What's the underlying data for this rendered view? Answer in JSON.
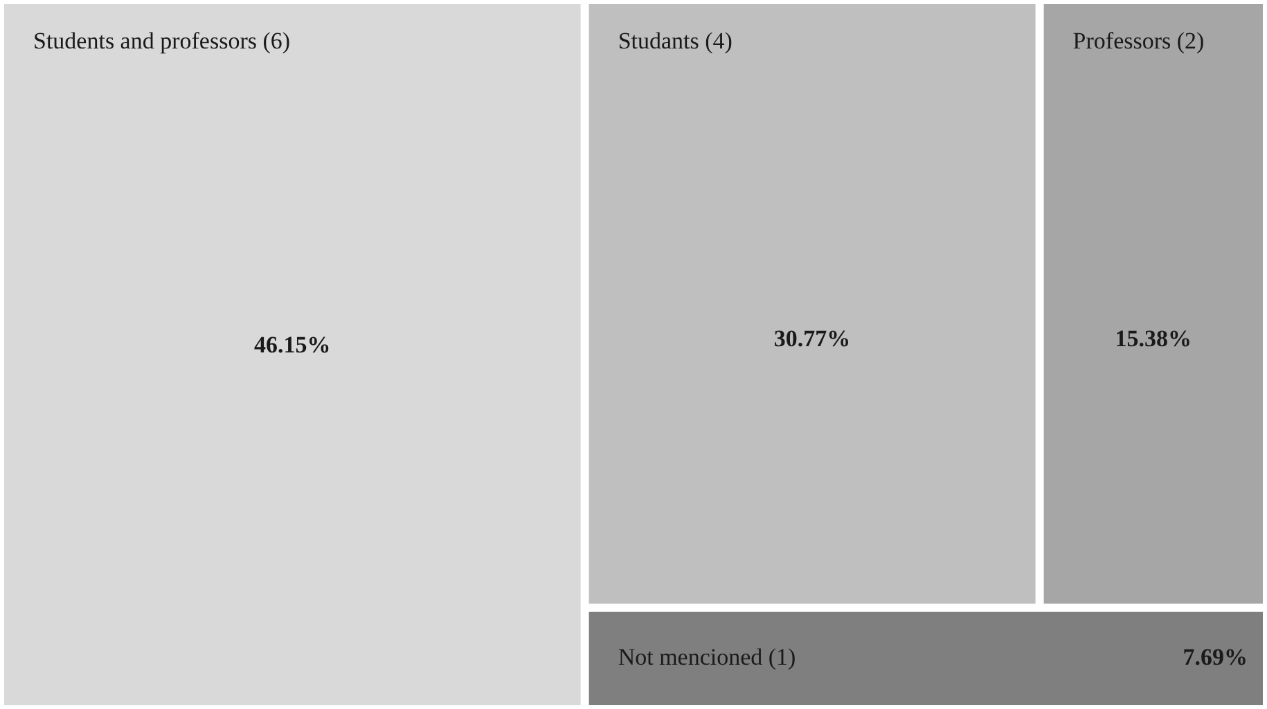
{
  "chart_data": {
    "type": "other",
    "categories": [
      "Students and professors (6)",
      "Studants (4)",
      "Professors (2)",
      "Not mencioned (1)"
    ],
    "values": [
      46.15,
      30.77,
      15.38,
      7.69
    ],
    "value_labels": [
      "46.15%",
      "30.77%",
      "15.38%",
      "7.69%"
    ],
    "colors": [
      "#d9d9d9",
      "#bfbfbf",
      "#a6a6a6",
      "#7f7f7f"
    ]
  }
}
